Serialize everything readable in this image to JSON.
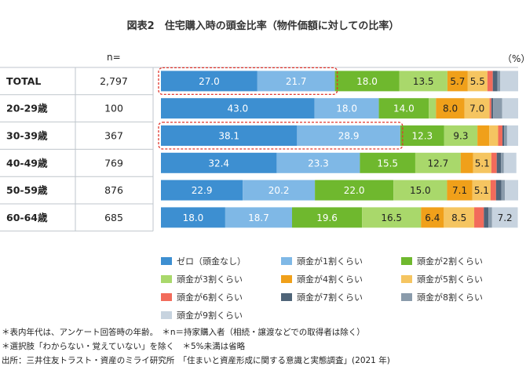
{
  "title": "図表2　住宅購入時の頭金比率（物件価額に対しての比率）",
  "n_header": "n=",
  "unit": "（%）",
  "notes": [
    "＊表内年代は、アンケート回答時の年齢。　＊n＝持家購入者（相続・譲渡などでの取得者は除く）",
    "＊選択肢「わからない・覚えていない」を除く　＊5%未満は省略",
    "出所：三井住友トラスト・資産のミライ研究所　「住まいと資産形成に関する意識と実態調査」(2021 年)"
  ],
  "chart_data": {
    "type": "bar",
    "orientation": "horizontal-stacked-100",
    "categories": [
      "TOTAL",
      "20-29歳",
      "30-39歳",
      "40-49歳",
      "50-59歳",
      "60-64歳"
    ],
    "n": [
      "2,797",
      "100",
      "367",
      "769",
      "876",
      "685"
    ],
    "series": [
      {
        "name": "ゼロ（頭金なし）",
        "color": "#3d8fd1",
        "values": [
          27.0,
          43.0,
          38.1,
          32.4,
          22.9,
          18.0
        ],
        "labels": [
          "27.0",
          "43.0",
          "38.1",
          "32.4",
          "22.9",
          "18.0"
        ]
      },
      {
        "name": "頭金が1割くらい",
        "color": "#7fb8e6",
        "values": [
          21.7,
          18.0,
          28.9,
          23.3,
          20.2,
          18.7
        ],
        "labels": [
          "21.7",
          "18.0",
          "28.9",
          "23.3",
          "20.2",
          "18.7"
        ]
      },
      {
        "name": "頭金が2割くらい",
        "color": "#6fb82e",
        "values": [
          18.0,
          14.0,
          12.3,
          15.5,
          22.0,
          19.6
        ],
        "labels": [
          "18.0",
          "14.0",
          "12.3",
          "15.5",
          "22.0",
          "19.6"
        ]
      },
      {
        "name": "頭金が3割くらい",
        "color": "#a9d86b",
        "values": [
          13.5,
          2.0,
          9.3,
          12.7,
          15.0,
          16.5
        ],
        "labels": [
          "13.5",
          "",
          "9.3",
          "12.7",
          "15.0",
          "16.5"
        ]
      },
      {
        "name": "頭金が4割くらい",
        "color": "#f0a01a",
        "values": [
          5.7,
          8.0,
          3.3,
          3.5,
          7.1,
          6.4
        ],
        "labels": [
          "5.7",
          "8.0",
          "",
          "",
          "7.1",
          "6.4"
        ]
      },
      {
        "name": "頭金が5割くらい",
        "color": "#f5c561",
        "values": [
          5.5,
          7.0,
          2.5,
          5.1,
          5.1,
          8.5
        ],
        "labels": [
          "5.5",
          "7.0",
          "",
          "5.1",
          "5.1",
          "8.5"
        ]
      },
      {
        "name": "頭金が6割くらい",
        "color": "#f26b5b",
        "values": [
          1.5,
          0.5,
          1.2,
          1.5,
          1.5,
          2.7
        ],
        "labels": [
          "",
          "",
          "",
          "",
          "",
          ""
        ]
      },
      {
        "name": "頭金が7割くらい",
        "color": "#4f6478",
        "values": [
          1.3,
          0.5,
          0.5,
          1.2,
          1.5,
          1.3
        ],
        "labels": [
          "",
          "",
          "",
          "",
          "",
          ""
        ]
      },
      {
        "name": "頭金が8割くらい",
        "color": "#8a9bab",
        "values": [
          0.8,
          2.5,
          0.8,
          0.8,
          1.0,
          1.0
        ],
        "labels": [
          "",
          "",
          "",
          "",
          "",
          ""
        ]
      },
      {
        "name": "頭金が9割くらい",
        "color": "#c7d3df",
        "values": [
          5.0,
          4.5,
          3.1,
          3.5,
          3.7,
          7.2
        ],
        "labels": [
          "",
          "",
          "",
          "",
          "",
          "7.2"
        ]
      }
    ],
    "highlighted": [
      {
        "category": "TOTAL",
        "series": [
          "ゼロ（頭金なし）",
          "頭金が1割くらい"
        ]
      },
      {
        "category": "30-39歳",
        "series": [
          "ゼロ（頭金なし）",
          "頭金が1割くらい"
        ]
      }
    ],
    "xlim": [
      0,
      100
    ]
  }
}
